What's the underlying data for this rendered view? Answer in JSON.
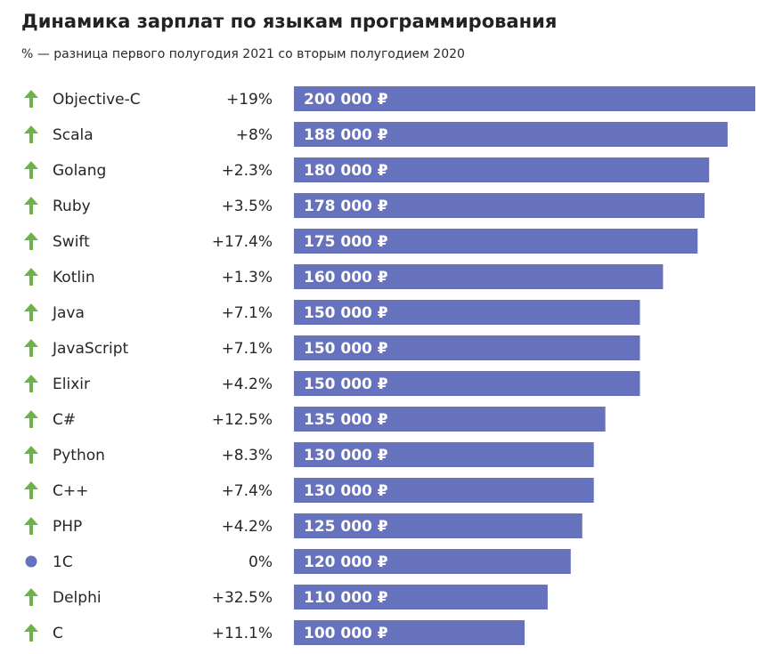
{
  "title": "Динамика зарплат по языкам программирования",
  "subtitle": "% — разница первого полугодия 2021 со вторым полугодием 2020",
  "colors": {
    "bar": "#6672bd",
    "up_arrow": "#6eb34a",
    "neutral_dot": "#6672bd"
  },
  "chart_data": {
    "type": "bar",
    "orientation": "horizontal",
    "title": "Динамика зарплат по языкам программирования",
    "subtitle": "% — разница первого полугодия 2021 со вторым полугодием 2020",
    "value_suffix": " ₽",
    "categories": [
      "Objective-C",
      "Scala",
      "Golang",
      "Ruby",
      "Swift",
      "Kotlin",
      "Java",
      "JavaScript",
      "Elixir",
      "C#",
      "Python",
      "C++",
      "PHP",
      "1C",
      "Delphi",
      "C"
    ],
    "values": [
      200000,
      188000,
      180000,
      178000,
      175000,
      160000,
      150000,
      150000,
      150000,
      135000,
      130000,
      130000,
      125000,
      120000,
      110000,
      100000
    ],
    "value_labels": [
      "200 000 ₽",
      "188 000 ₽",
      "180 000 ₽",
      "178 000 ₽",
      "175 000 ₽",
      "160 000 ₽",
      "150 000 ₽",
      "150 000 ₽",
      "150 000 ₽",
      "135 000 ₽",
      "130 000 ₽",
      "130 000 ₽",
      "125 000 ₽",
      "120 000 ₽",
      "110 000 ₽",
      "100 000 ₽"
    ],
    "changes": [
      "+19%",
      "+8%",
      "+2.3%",
      "+3.5%",
      "+17.4%",
      "+1.3%",
      "+7.1%",
      "+7.1%",
      "+4.2%",
      "+12.5%",
      "+8.3%",
      "+7.4%",
      "+4.2%",
      "0%",
      "+32.5%",
      "+11.1%"
    ],
    "trend_icons": [
      "up-arrow-icon",
      "up-arrow-icon",
      "up-arrow-icon",
      "up-arrow-icon",
      "up-arrow-icon",
      "up-arrow-icon",
      "up-arrow-icon",
      "up-arrow-icon",
      "up-arrow-icon",
      "up-arrow-icon",
      "up-arrow-icon",
      "up-arrow-icon",
      "up-arrow-icon",
      "neutral-dot-icon",
      "up-arrow-icon",
      "up-arrow-icon"
    ],
    "xlim": [
      0,
      200000
    ],
    "grid": false,
    "legend": "none"
  }
}
